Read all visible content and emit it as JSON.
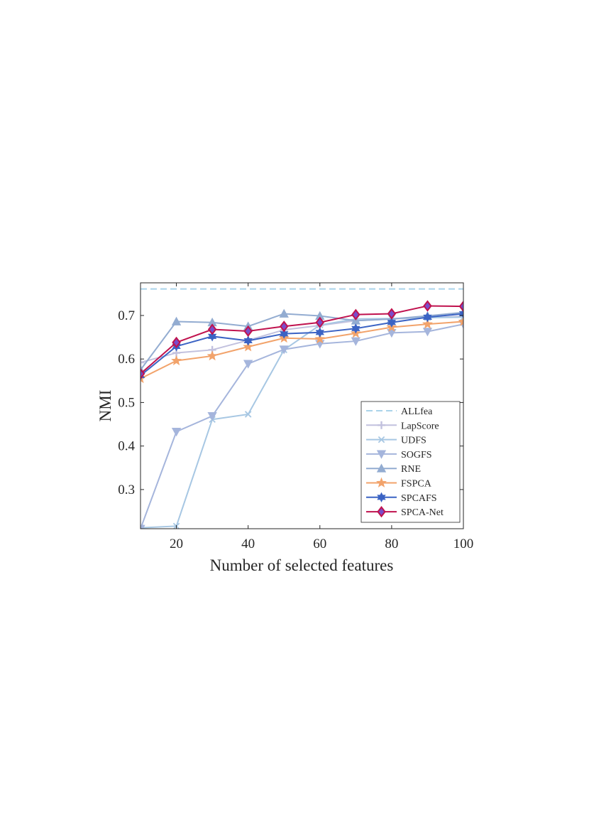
{
  "chart_data": {
    "type": "line",
    "xlabel": "Number of selected features",
    "ylabel": "NMI",
    "xlim": [
      10,
      100
    ],
    "ylim": [
      0.21,
      0.775
    ],
    "xticks": [
      20,
      40,
      60,
      80,
      100
    ],
    "yticks": [
      0.3,
      0.4,
      0.5,
      0.6,
      0.7
    ],
    "grid": false,
    "legend_position": "bottom-right",
    "x": [
      10,
      20,
      30,
      40,
      50,
      60,
      70,
      80,
      90,
      100
    ],
    "baseline": {
      "name": "ALLfea",
      "value": 0.761,
      "color": "#aad3ea",
      "style": "dashed"
    },
    "series": [
      {
        "name": "LapScore",
        "color": "#c2c1de",
        "marker": "plus",
        "values": [
          0.592,
          0.614,
          0.621,
          0.643,
          0.667,
          0.677,
          0.688,
          0.692,
          0.695,
          0.698
        ]
      },
      {
        "name": "UDFS",
        "color": "#a7c7e3",
        "marker": "x",
        "values": [
          0.212,
          0.216,
          0.461,
          0.473,
          0.621,
          0.678,
          0.692,
          0.693,
          0.695,
          0.696
        ]
      },
      {
        "name": "SOGFS",
        "color": "#a5b5dc",
        "marker": "triangle-down",
        "values": [
          0.21,
          0.433,
          0.469,
          0.589,
          0.622,
          0.635,
          0.641,
          0.66,
          0.663,
          0.68
        ]
      },
      {
        "name": "RNE",
        "color": "#93acd1",
        "marker": "triangle-up",
        "values": [
          0.575,
          0.686,
          0.684,
          0.675,
          0.704,
          0.699,
          0.688,
          0.692,
          0.699,
          0.707
        ]
      },
      {
        "name": "FSPCA",
        "color": "#f2a36b",
        "marker": "star",
        "values": [
          0.555,
          0.596,
          0.607,
          0.628,
          0.648,
          0.646,
          0.659,
          0.673,
          0.68,
          0.686
        ]
      },
      {
        "name": "SPCAFS",
        "color": "#3b63c4",
        "marker": "hexagram",
        "values": [
          0.562,
          0.629,
          0.652,
          0.642,
          0.658,
          0.661,
          0.67,
          0.684,
          0.696,
          0.704
        ]
      },
      {
        "name": "SPCA-Net",
        "color": "#c0124e",
        "marker": "diamond",
        "markerFill": "#7a4dc9",
        "values": [
          0.566,
          0.638,
          0.668,
          0.664,
          0.675,
          0.684,
          0.702,
          0.704,
          0.722,
          0.721
        ]
      }
    ]
  }
}
